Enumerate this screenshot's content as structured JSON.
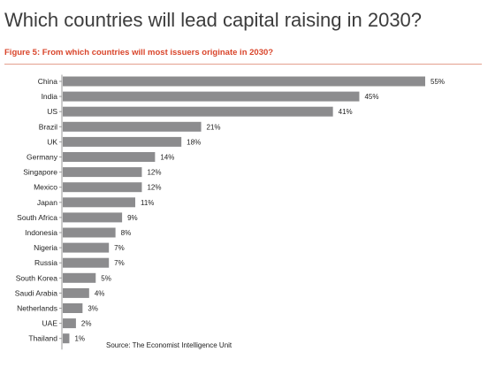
{
  "page": {
    "title": "Which countries will lead capital raising in 2030?",
    "caption": "Figure 5: From which countries will most issuers originate in 2030?",
    "source": "Source: The Economist Intelligence Unit"
  },
  "colors": {
    "bar": "#8c8c8e",
    "caption": "#d9452b",
    "axis": "#9a9a9a",
    "text": "#222222"
  },
  "chart_data": {
    "type": "bar",
    "orientation": "horizontal",
    "categories": [
      "China",
      "India",
      "US",
      "Brazil",
      "UK",
      "Germany",
      "Singapore",
      "Mexico",
      "Japan",
      "South Africa",
      "Indonesia",
      "Nigeria",
      "Russia",
      "South Korea",
      "Saudi Arabia",
      "Netherlands",
      "UAE",
      "Thailand"
    ],
    "values": [
      55,
      45,
      41,
      21,
      18,
      14,
      12,
      12,
      11,
      9,
      8,
      7,
      7,
      5,
      4,
      3,
      2,
      1
    ],
    "value_labels": [
      "55%",
      "45%",
      "41%",
      "21%",
      "18%",
      "14%",
      "12%",
      "12%",
      "11%",
      "9%",
      "8%",
      "7%",
      "7%",
      "5%",
      "4%",
      "3%",
      "2%",
      "1%"
    ],
    "value_unit": "%",
    "xlim": [
      0,
      55
    ],
    "grid": false,
    "legend": "none"
  }
}
